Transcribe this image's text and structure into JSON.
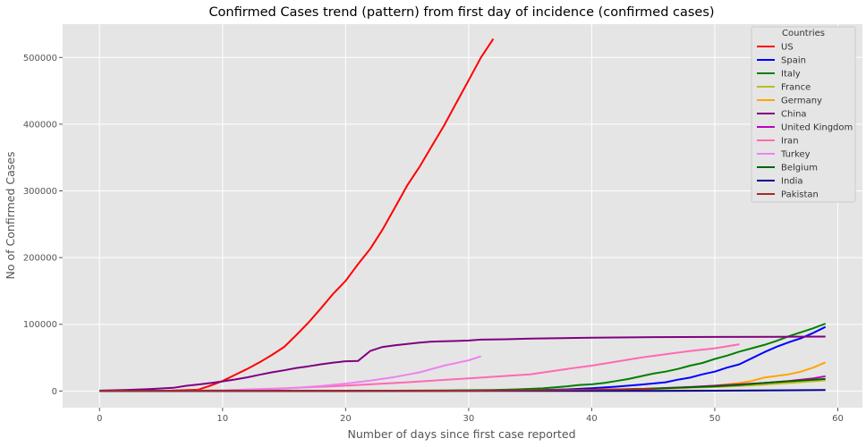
{
  "chart_data": {
    "type": "line",
    "title": "Confirmed Cases trend (pattern) from first day of incidence (confirmed cases)",
    "xlabel": "Number of days since first case reported",
    "ylabel": "No of Confirmed Cases",
    "xlim": [
      -3,
      62
    ],
    "ylim": [
      -25000,
      550000
    ],
    "xticks": [
      0,
      10,
      20,
      30,
      40,
      50,
      60
    ],
    "yticks": [
      0,
      100000,
      200000,
      300000,
      400000,
      500000
    ],
    "grid": true,
    "legend": {
      "title": "Countries",
      "placement": "top-right"
    },
    "series": [
      {
        "name": "US",
        "color": "#ff0000",
        "points": [
          [
            0,
            1
          ],
          [
            5,
            100
          ],
          [
            8,
            2000
          ],
          [
            9,
            8000
          ],
          [
            10,
            15000
          ],
          [
            11,
            24000
          ],
          [
            12,
            33000
          ],
          [
            13,
            43000
          ],
          [
            14,
            54000
          ],
          [
            15,
            66000
          ],
          [
            16,
            84000
          ],
          [
            17,
            103000
          ],
          [
            18,
            124000
          ],
          [
            19,
            146000
          ],
          [
            20,
            165000
          ],
          [
            21,
            190000
          ],
          [
            22,
            213000
          ],
          [
            23,
            242000
          ],
          [
            24,
            275000
          ],
          [
            25,
            308000
          ],
          [
            26,
            336000
          ],
          [
            27,
            367000
          ],
          [
            28,
            398000
          ],
          [
            29,
            432000
          ],
          [
            30,
            466000
          ],
          [
            31,
            500000
          ],
          [
            32,
            528000
          ]
        ]
      },
      {
        "name": "Spain",
        "color": "#0000ff",
        "points": [
          [
            0,
            1
          ],
          [
            10,
            10
          ],
          [
            20,
            50
          ],
          [
            30,
            300
          ],
          [
            35,
            1200
          ],
          [
            38,
            2500
          ],
          [
            40,
            4200
          ],
          [
            42,
            6500
          ],
          [
            44,
            9500
          ],
          [
            46,
            13000
          ],
          [
            47,
            17000
          ],
          [
            48,
            20000
          ],
          [
            49,
            25000
          ],
          [
            50,
            29000
          ],
          [
            51,
            35000
          ],
          [
            52,
            40000
          ],
          [
            53,
            49000
          ],
          [
            54,
            58000
          ],
          [
            55,
            66000
          ],
          [
            56,
            73000
          ],
          [
            57,
            79000
          ],
          [
            58,
            87000
          ],
          [
            59,
            96000
          ]
        ]
      },
      {
        "name": "Italy",
        "color": "#008000",
        "points": [
          [
            0,
            1
          ],
          [
            20,
            200
          ],
          [
            28,
            700
          ],
          [
            32,
            1600
          ],
          [
            34,
            2500
          ],
          [
            36,
            4000
          ],
          [
            38,
            7000
          ],
          [
            39,
            9000
          ],
          [
            40,
            10000
          ],
          [
            41,
            12000
          ],
          [
            42,
            15000
          ],
          [
            43,
            18000
          ],
          [
            44,
            22000
          ],
          [
            45,
            26000
          ],
          [
            46,
            29000
          ],
          [
            47,
            33000
          ],
          [
            48,
            38000
          ],
          [
            49,
            42000
          ],
          [
            50,
            48000
          ],
          [
            51,
            53000
          ],
          [
            52,
            59000
          ],
          [
            53,
            64000
          ],
          [
            54,
            69000
          ],
          [
            55,
            75000
          ],
          [
            56,
            82000
          ],
          [
            57,
            88000
          ],
          [
            58,
            94000
          ],
          [
            59,
            101000
          ]
        ]
      },
      {
        "name": "France",
        "color": "#bcbd22",
        "points": [
          [
            0,
            1
          ],
          [
            20,
            100
          ],
          [
            30,
            300
          ],
          [
            38,
            1200
          ],
          [
            42,
            2500
          ],
          [
            46,
            4000
          ],
          [
            50,
            6000
          ],
          [
            52,
            7500
          ],
          [
            54,
            9500
          ],
          [
            56,
            12000
          ],
          [
            58,
            14500
          ],
          [
            59,
            16000
          ]
        ]
      },
      {
        "name": "Germany",
        "color": "#ffa500",
        "points": [
          [
            0,
            1
          ],
          [
            25,
            100
          ],
          [
            35,
            800
          ],
          [
            40,
            1200
          ],
          [
            45,
            3000
          ],
          [
            48,
            5000
          ],
          [
            50,
            8000
          ],
          [
            52,
            12000
          ],
          [
            53,
            15000
          ],
          [
            54,
            20000
          ],
          [
            56,
            25000
          ],
          [
            57,
            29000
          ],
          [
            58,
            35000
          ],
          [
            59,
            43000
          ]
        ]
      },
      {
        "name": "China",
        "color": "#800080",
        "points": [
          [
            0,
            600
          ],
          [
            2,
            1500
          ],
          [
            4,
            2800
          ],
          [
            6,
            4800
          ],
          [
            7,
            7700
          ],
          [
            8,
            9700
          ],
          [
            9,
            11800
          ],
          [
            10,
            14400
          ],
          [
            11,
            17200
          ],
          [
            12,
            20400
          ],
          [
            13,
            24300
          ],
          [
            14,
            28000
          ],
          [
            15,
            31000
          ],
          [
            16,
            34500
          ],
          [
            17,
            37000
          ],
          [
            18,
            40000
          ],
          [
            19,
            42600
          ],
          [
            20,
            44600
          ],
          [
            21,
            45000
          ],
          [
            22,
            60000
          ],
          [
            23,
            66000
          ],
          [
            24,
            68500
          ],
          [
            25,
            70500
          ],
          [
            26,
            72400
          ],
          [
            27,
            74100
          ],
          [
            29,
            75000
          ],
          [
            30,
            75600
          ],
          [
            31,
            77000
          ],
          [
            33,
            77500
          ],
          [
            35,
            78500
          ],
          [
            40,
            80000
          ],
          [
            45,
            80800
          ],
          [
            50,
            81000
          ],
          [
            55,
            81200
          ],
          [
            59,
            81500
          ]
        ]
      },
      {
        "name": "United Kingdom",
        "color": "#c000c0",
        "points": [
          [
            0,
            1
          ],
          [
            20,
            100
          ],
          [
            30,
            400
          ],
          [
            40,
            1500
          ],
          [
            44,
            3000
          ],
          [
            48,
            6000
          ],
          [
            50,
            8000
          ],
          [
            52,
            10000
          ],
          [
            54,
            12000
          ],
          [
            56,
            15000
          ],
          [
            58,
            19000
          ],
          [
            59,
            22000
          ]
        ]
      },
      {
        "name": "Iran",
        "color": "#ff69b4",
        "points": [
          [
            0,
            2
          ],
          [
            5,
            100
          ],
          [
            10,
            1000
          ],
          [
            15,
            4000
          ],
          [
            20,
            8000
          ],
          [
            25,
            13000
          ],
          [
            30,
            19000
          ],
          [
            35,
            25000
          ],
          [
            38,
            33000
          ],
          [
            40,
            38000
          ],
          [
            42,
            44000
          ],
          [
            44,
            50000
          ],
          [
            46,
            55000
          ],
          [
            48,
            60000
          ],
          [
            50,
            64000
          ],
          [
            52,
            70000
          ]
        ]
      },
      {
        "name": "Turkey",
        "color": "#ee82ee",
        "points": [
          [
            0,
            1
          ],
          [
            10,
            700
          ],
          [
            15,
            3500
          ],
          [
            18,
            7500
          ],
          [
            20,
            11000
          ],
          [
            22,
            15500
          ],
          [
            24,
            21000
          ],
          [
            26,
            28000
          ],
          [
            28,
            38000
          ],
          [
            30,
            46000
          ],
          [
            31,
            52000
          ]
        ]
      },
      {
        "name": "Belgium",
        "color": "#006400",
        "points": [
          [
            0,
            1
          ],
          [
            20,
            100
          ],
          [
            30,
            500
          ],
          [
            40,
            1500
          ],
          [
            45,
            3500
          ],
          [
            50,
            7000
          ],
          [
            52,
            9000
          ],
          [
            54,
            12000
          ],
          [
            56,
            14500
          ],
          [
            58,
            17000
          ],
          [
            59,
            18000
          ]
        ]
      },
      {
        "name": "India",
        "color": "#00008b",
        "points": [
          [
            0,
            1
          ],
          [
            30,
            5
          ],
          [
            40,
            50
          ],
          [
            45,
            200
          ],
          [
            50,
            500
          ],
          [
            55,
            1000
          ],
          [
            59,
            1500
          ]
        ]
      },
      {
        "name": "Pakistan",
        "color": "#a52a2a",
        "points": [
          [
            0,
            2
          ],
          [
            10,
            50
          ],
          [
            20,
            200
          ],
          [
            30,
            500
          ],
          [
            35,
            1200
          ],
          [
            40,
            2000
          ],
          [
            43,
            2500
          ],
          [
            45,
            3000
          ]
        ]
      }
    ]
  }
}
